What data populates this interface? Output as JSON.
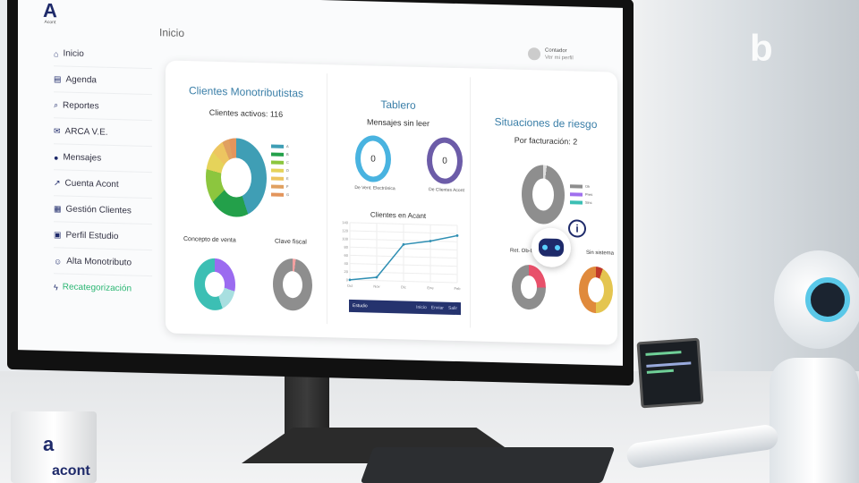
{
  "header": {
    "logo_text": "Acont",
    "title": "Inicio",
    "user_name": "Contador",
    "user_sub": "Ver mi perfil"
  },
  "sidebar": {
    "items": [
      {
        "icon": "home-icon",
        "glyph": "⌂",
        "label": "Inicio"
      },
      {
        "icon": "calendar-icon",
        "glyph": "▤",
        "label": "Agenda"
      },
      {
        "icon": "search-icon",
        "glyph": "⌕",
        "label": "Reportes"
      },
      {
        "icon": "mail-icon",
        "glyph": "✉",
        "label": "ARCA V.E."
      },
      {
        "icon": "chat-icon",
        "glyph": "●",
        "label": "Mensajes"
      },
      {
        "icon": "chart-icon",
        "glyph": "↗",
        "label": "Cuenta Acont"
      },
      {
        "icon": "table-icon",
        "glyph": "▦",
        "label": "Gestión Clientes"
      },
      {
        "icon": "id-card-icon",
        "glyph": "▣",
        "label": "Perfil Estudio"
      },
      {
        "icon": "user-add-icon",
        "glyph": "☺",
        "label": "Alta Monotributo"
      },
      {
        "icon": "bolt-icon",
        "glyph": "ϟ",
        "label": "Recategorización",
        "accent": "#2bb673"
      }
    ]
  },
  "clientes": {
    "title": "Clientes Monotributistas",
    "active": "Clientes activos: 116",
    "donut": [
      {
        "label": "A",
        "value": 45,
        "color": "#3f9eb5"
      },
      {
        "label": "B",
        "value": 17,
        "color": "#23a04a"
      },
      {
        "label": "C",
        "value": 17,
        "color": "#8cc63e"
      },
      {
        "label": "D",
        "value": 9,
        "color": "#e5d35a"
      },
      {
        "label": "E",
        "value": 6,
        "color": "#edc560"
      },
      {
        "label": "F",
        "value": 3,
        "color": "#e0a060"
      },
      {
        "label": "G",
        "value": 3,
        "color": "#e3955c"
      }
    ],
    "concepto": {
      "label": "Concepto de venta",
      "slices": [
        {
          "value": 30,
          "color": "#9b6bf0"
        },
        {
          "value": 15,
          "color": "#a8dfe0"
        },
        {
          "value": 55,
          "color": "#3cbfb4"
        }
      ]
    },
    "clave": {
      "label": "Clave fiscal",
      "slices": [
        {
          "value": 2,
          "color": "#f2a0a0"
        },
        {
          "value": 98,
          "color": "#8e8e8e"
        }
      ]
    }
  },
  "tablero": {
    "title": "Tablero",
    "unread": "Mensajes sin leer",
    "rings": [
      {
        "value": "0",
        "label": "De Vent. Electrónica",
        "color": "#49b3e0"
      },
      {
        "value": "0",
        "label": "De Clientes Acont",
        "color": "#6c5ca8"
      }
    ]
  },
  "chart_data": {
    "type": "line",
    "title": "Clientes en Acant",
    "categories": [
      "Oct",
      "Nov",
      "Dic",
      "Ene",
      "Feb"
    ],
    "values": [
      0,
      8,
      90,
      100,
      115
    ],
    "ylim": [
      0,
      140
    ],
    "yticks": [
      0,
      20,
      40,
      60,
      80,
      100,
      120,
      140
    ],
    "grid": true,
    "color": "#2f8fb3"
  },
  "footer_bar": {
    "left": "Estudio",
    "links": [
      "Inicio",
      "Enviar",
      "Salir"
    ]
  },
  "riesgo": {
    "title": "Situaciones de riesgo",
    "sub": "Por facturación: 2",
    "donut": {
      "slices": [
        {
          "value": 2,
          "color": "#ddd"
        },
        {
          "value": 98,
          "color": "#8e8e8e"
        }
      ],
      "legend": [
        {
          "label": "Ok",
          "color": "#8e8e8e"
        },
        {
          "label": "Pres",
          "color": "#a070ee"
        },
        {
          "label": "Sinc",
          "color": "#3cbfb4"
        }
      ]
    },
    "left_label": "Ret. Ob-Ing",
    "right_label": "Sin sistema",
    "left_donut": [
      {
        "value": 25,
        "color": "#e8506a"
      },
      {
        "value": 75,
        "color": "#8e8e8e"
      }
    ],
    "right_donut": [
      {
        "value": 5,
        "color": "#c0392b"
      },
      {
        "value": 45,
        "color": "#e4c550"
      },
      {
        "value": 50,
        "color": "#e08a3c"
      }
    ]
  },
  "mug": {
    "brand": "acont"
  },
  "brand_mark": "b"
}
